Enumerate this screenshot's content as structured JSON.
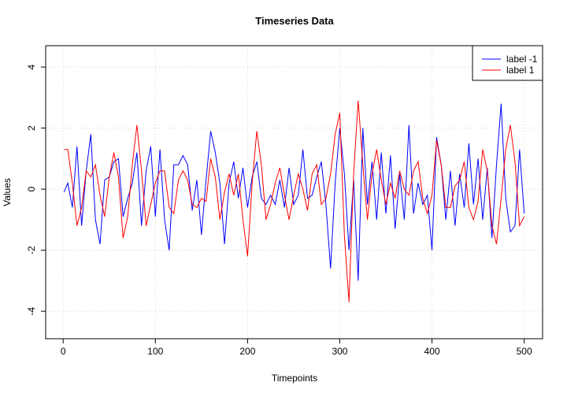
{
  "chart_data": {
    "type": "line",
    "title": "Timeseries Data",
    "x_label": "Timepoints",
    "y_label": "Values",
    "x": [
      1,
      5,
      10,
      15,
      20,
      25,
      30,
      35,
      40,
      45,
      50,
      55,
      60,
      65,
      70,
      75,
      80,
      85,
      90,
      95,
      100,
      105,
      110,
      115,
      120,
      125,
      130,
      135,
      140,
      145,
      150,
      155,
      160,
      165,
      170,
      175,
      180,
      185,
      190,
      195,
      200,
      205,
      210,
      215,
      220,
      225,
      230,
      235,
      240,
      245,
      250,
      255,
      260,
      265,
      270,
      275,
      280,
      285,
      290,
      295,
      300,
      305,
      310,
      315,
      320,
      325,
      330,
      335,
      340,
      345,
      350,
      355,
      360,
      365,
      370,
      375,
      380,
      385,
      390,
      395,
      400,
      405,
      410,
      415,
      420,
      425,
      430,
      435,
      440,
      445,
      450,
      455,
      460,
      465,
      470,
      475,
      480,
      485,
      490,
      495,
      500
    ],
    "series": [
      {
        "name": "label -1",
        "color": "#0000ff",
        "values": [
          -0.1,
          0.2,
          -0.6,
          1.4,
          -1.2,
          0.6,
          1.8,
          -1.0,
          -1.8,
          0.3,
          0.4,
          0.9,
          1.0,
          -0.9,
          -0.3,
          0.2,
          1.2,
          -1.2,
          0.6,
          1.4,
          -0.9,
          1.3,
          -1.0,
          -2.0,
          0.8,
          0.8,
          1.1,
          0.8,
          -0.7,
          0.3,
          -1.5,
          0.3,
          1.9,
          1.2,
          0.2,
          -1.8,
          0.2,
          0.9,
          -0.3,
          0.7,
          -0.6,
          0.4,
          0.9,
          -0.3,
          -0.5,
          -0.2,
          -0.5,
          0.3,
          -0.6,
          0.7,
          -0.5,
          -0.2,
          1.3,
          -0.3,
          -0.2,
          0.4,
          0.9,
          -0.5,
          -2.6,
          0.2,
          2.0,
          0.5,
          -2.0,
          0.3,
          -3.0,
          2.0,
          -0.5,
          0.9,
          -1.0,
          1.2,
          -0.8,
          1.1,
          -1.3,
          0.5,
          -1.0,
          2.1,
          -0.8,
          0.2,
          -0.5,
          -0.2,
          -2.0,
          1.7,
          0.8,
          -1.0,
          0.6,
          -1.2,
          0.5,
          -0.6,
          1.5,
          -0.5,
          1.0,
          -1.0,
          0.7,
          -1.6,
          0.8,
          2.8,
          -0.3,
          -1.4,
          -1.2,
          1.3,
          -0.8
        ]
      },
      {
        "name": "label 1",
        "color": "#ff0000",
        "values": [
          1.3,
          1.3,
          0.2,
          -1.2,
          -0.6,
          0.6,
          0.4,
          0.8,
          -0.2,
          -0.9,
          0.4,
          1.2,
          0.4,
          -1.6,
          -0.9,
          0.8,
          2.1,
          0.6,
          -1.2,
          -0.5,
          0.2,
          0.6,
          0.6,
          -0.6,
          -0.8,
          0.3,
          0.6,
          0.3,
          -0.5,
          -0.6,
          -0.3,
          -0.4,
          1.0,
          0.4,
          -1.0,
          -0.1,
          0.5,
          -0.2,
          0.5,
          -1.0,
          -2.2,
          0.2,
          1.9,
          0.8,
          -1.0,
          -0.5,
          0.2,
          0.7,
          -0.2,
          -1.0,
          -0.2,
          0.5,
          0.0,
          -0.7,
          0.5,
          0.8,
          -0.5,
          -0.3,
          0.5,
          1.8,
          2.5,
          -1.5,
          -3.7,
          0.5,
          2.9,
          0.8,
          -1.0,
          0.5,
          1.3,
          0.3,
          -0.5,
          0.2,
          -0.3,
          0.6,
          0.0,
          -0.2,
          0.6,
          0.9,
          -0.3,
          -0.8,
          -0.2,
          1.6,
          0.8,
          -0.6,
          -0.6,
          0.1,
          0.3,
          0.9,
          -0.6,
          -1.0,
          -0.4,
          1.3,
          0.6,
          -1.2,
          -1.8,
          -0.3,
          1.3,
          2.1,
          0.9,
          -1.2,
          -0.9
        ]
      }
    ],
    "xlim": [
      -18.96,
      519.96
    ],
    "ylim": [
      -4.9,
      4.7
    ],
    "xticks": [
      0,
      100,
      200,
      300,
      400,
      500
    ],
    "yticks": [
      -4,
      -2,
      0,
      2,
      4
    ],
    "grid": true,
    "legend_position": "top-right"
  }
}
